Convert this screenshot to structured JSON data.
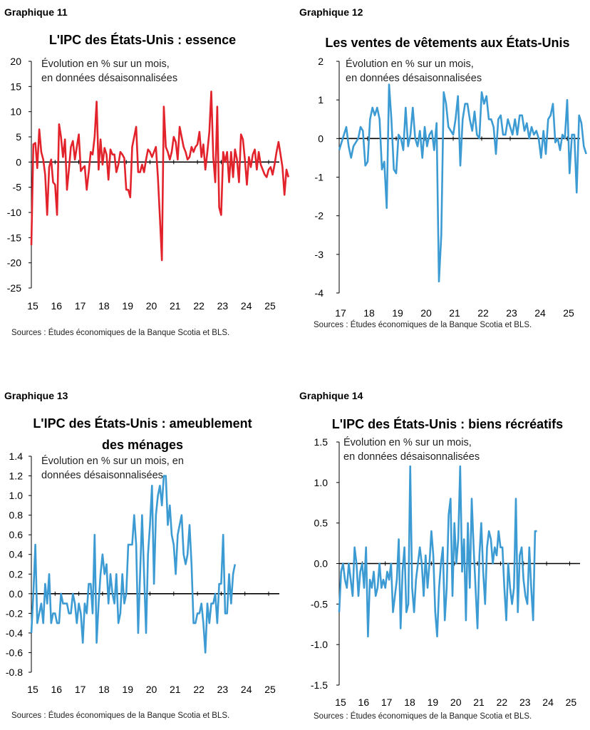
{
  "chart_data": [
    {
      "type": "line",
      "label": "Graphique 11",
      "title": "L'IPC des États-Unis : essence",
      "subtitle": [
        "Évolution en % sur un mois,",
        "en données désaisonnalisées"
      ],
      "source": "Sources : Études économiques de la Banque Scotia et BLS.",
      "xlabel": "",
      "ylabel": "",
      "color": "#e3232c",
      "ylim": [
        -25,
        20
      ],
      "yticks": [
        "20",
        "15",
        "10",
        "5",
        "0",
        "-5",
        "-10",
        "-15",
        "-20",
        "-25"
      ],
      "ytick_values": [
        20,
        15,
        10,
        5,
        0,
        -5,
        -10,
        -15,
        -20,
        -25
      ],
      "xlim": [
        2015.0,
        2025.45
      ],
      "xticks": [
        "15",
        "16",
        "17",
        "18",
        "19",
        "20",
        "21",
        "22",
        "23",
        "24",
        "25"
      ],
      "xtick_values": [
        2015,
        2016,
        2017,
        2018,
        2019,
        2020,
        2021,
        2022,
        2023,
        2024,
        2025
      ],
      "grid": false,
      "x_start": 2015.0,
      "x_step": 0.08333,
      "values": [
        -16.5,
        3.5,
        3.8,
        -1.2,
        6.5,
        2.0,
        0.5,
        -2.5,
        -10.5,
        -1.0,
        0.5,
        -4.0,
        -4.5,
        -10.5,
        7.5,
        5.0,
        1.0,
        4.5,
        -5.5,
        -1.5,
        3.0,
        4.2,
        0.5,
        3.0,
        5.5,
        -1.8,
        -1.2,
        -0.8,
        -5.5,
        -2.0,
        2.0,
        1.5,
        5.0,
        12.0,
        -1.5,
        4.5,
        -0.5,
        2.8,
        1.5,
        -3.5,
        2.5,
        1.5,
        1.5,
        -2.0,
        -0.5,
        2.0,
        1.5,
        0.8,
        -5.5,
        -5.5,
        -7.0,
        3.0,
        5.0,
        7.0,
        -2.0,
        -2.0,
        -0.5,
        -2.0,
        0.5,
        2.5,
        2.0,
        1.0,
        2.0,
        3.0,
        -3.0,
        -11.0,
        -19.5,
        11.0,
        3.0,
        2.0,
        0.5,
        2.0,
        5.0,
        4.0,
        0.5,
        7.0,
        5.0,
        3.0,
        2.0,
        0.5,
        1.0,
        3.0,
        2.0,
        3.0,
        3.5,
        6.0,
        1.0,
        3.5,
        -1.5,
        2.0,
        6.0,
        14.0,
        1.0,
        -4.0,
        11.0,
        -9.0,
        -10.5,
        2.0,
        0.0,
        2.0,
        -4.0,
        2.0,
        -3.0,
        2.5,
        0.5,
        -4.0,
        5.5,
        4.5,
        0.5,
        -4.5,
        1.0,
        -1.0,
        1.5,
        2.5,
        -1.5,
        2.0,
        -0.5,
        -1.5,
        -2.5,
        -3.0,
        -1.5,
        -1.0,
        -2.5,
        -0.5,
        2.0,
        4.0,
        1.5,
        -1.0,
        -6.5,
        -1.5,
        -3.0
      ]
    },
    {
      "type": "line",
      "label": "Graphique 12",
      "title": "Les ventes de vêtements aux États-Unis",
      "subtitle": [
        "Évolution en % sur un mois,",
        "en données désaisonnalisées"
      ],
      "source": "Sources : Études économiques de la Banque Scotia et  BLS.",
      "xlabel": "",
      "ylabel": "",
      "color": "#3d9bd3",
      "ylim": [
        -4,
        2
      ],
      "yticks": [
        "2",
        "1",
        "0",
        "-1",
        "-2",
        "-3",
        "-4"
      ],
      "ytick_values": [
        2,
        1,
        0,
        -1,
        -2,
        -3,
        -4
      ],
      "xlim": [
        2017.0,
        2025.45
      ],
      "xticks": [
        "17",
        "18",
        "19",
        "20",
        "21",
        "22",
        "23",
        "24",
        "25"
      ],
      "xtick_values": [
        2017,
        2018,
        2019,
        2020,
        2021,
        2022,
        2023,
        2024,
        2025
      ],
      "grid": false,
      "x_start": 2017.0,
      "x_step": 0.08333,
      "values": [
        -0.3,
        -0.1,
        0.1,
        0.3,
        -0.2,
        -0.5,
        -0.2,
        -0.1,
        0.0,
        0.3,
        0.2,
        -0.7,
        -0.6,
        0.5,
        0.8,
        0.6,
        0.8,
        0.5,
        -0.8,
        -0.6,
        -1.8,
        1.4,
        0.5,
        -0.8,
        -0.9,
        0.1,
        0.0,
        -0.3,
        0.8,
        -0.2,
        0.1,
        0.8,
        0.0,
        -0.2,
        0.2,
        -0.5,
        0.3,
        -0.2,
        0.1,
        0.2,
        -0.3,
        0.4,
        -3.7,
        -2.5,
        1.2,
        0.9,
        0.3,
        0.2,
        0.1,
        0.5,
        1.1,
        -0.7,
        0.5,
        0.9,
        0.9,
        0.5,
        0.2,
        0.7,
        0.1,
        0.0,
        1.2,
        0.9,
        1.1,
        0.5,
        0.5,
        0.3,
        -0.4,
        0.5,
        0.6,
        0.1,
        0.1,
        0.5,
        0.3,
        0.1,
        0.5,
        0.1,
        0.6,
        0.6,
        0.2,
        0.4,
        0.0,
        0.3,
        0.1,
        0.2,
        0.0,
        -0.5,
        0.2,
        -0.4,
        0.5,
        0.6,
        0.9,
        -0.1,
        0.0,
        -0.3,
        0.1,
        0.0,
        1.0,
        -0.9,
        0.1,
        0.1,
        -1.4,
        0.6,
        0.4,
        -0.2,
        -0.4
      ]
    },
    {
      "type": "line",
      "label": "Graphique 13",
      "title": "L'IPC des États-Unis : ameublement des ménages",
      "title_lines": [
        "L'IPC des États-Unis : ameublement",
        "des ménages"
      ],
      "subtitle": [
        "Évolution en % sur un mois, en",
        "données désaisonnalisées"
      ],
      "source": "Sources : Études économiques de la Banque Scotia et BLS.",
      "xlabel": "",
      "ylabel": "",
      "color": "#3d9bd3",
      "ylim": [
        -0.8,
        1.4
      ],
      "yticks": [
        "1.4",
        "1.2",
        "1.0",
        "0.8",
        "0.6",
        "0.4",
        "0.2",
        "0.0",
        "-0.2",
        "-0.4",
        "-0.6",
        "-0.8"
      ],
      "ytick_values": [
        1.4,
        1.2,
        1.0,
        0.8,
        0.6,
        0.4,
        0.2,
        0.0,
        -0.2,
        -0.4,
        -0.6,
        -0.8
      ],
      "xlim": [
        2015.0,
        2025.45
      ],
      "xticks": [
        "15",
        "16",
        "17",
        "18",
        "19",
        "20",
        "21",
        "22",
        "23",
        "24",
        "25"
      ],
      "xtick_values": [
        2015,
        2016,
        2017,
        2018,
        2019,
        2020,
        2021,
        2022,
        2023,
        2024,
        2025
      ],
      "grid": false,
      "x_start": 2015.0,
      "x_step": 0.08333,
      "values": [
        -0.4,
        0.0,
        0.5,
        -0.3,
        -0.2,
        -0.1,
        -0.3,
        0.1,
        -0.1,
        0.2,
        -0.3,
        -0.2,
        -0.2,
        -0.3,
        -0.3,
        0.0,
        -0.1,
        -0.1,
        -0.1,
        -0.2,
        -0.2,
        0.0,
        -0.1,
        -0.3,
        -0.1,
        -0.2,
        -0.5,
        -0.1,
        -0.2,
        0.1,
        0.1,
        -0.2,
        0.6,
        -0.5,
        -0.1,
        0.2,
        0.4,
        0.2,
        0.3,
        -0.1,
        0.2,
        0.0,
        -0.1,
        0.2,
        -0.3,
        -0.2,
        0.2,
        -0.1,
        0.0,
        0.5,
        0.5,
        0.5,
        0.8,
        0.5,
        -0.4,
        0.2,
        0.8,
        0.2,
        -0.4,
        0.4,
        0.7,
        1.1,
        0.1,
        0.8,
        1.0,
        1.1,
        0.9,
        1.2,
        1.2,
        0.7,
        0.9,
        0.6,
        0.5,
        0.2,
        0.6,
        0.7,
        0.8,
        0.4,
        0.3,
        0.4,
        0.7,
        0.3,
        -0.3,
        -0.3,
        -0.2,
        -0.2,
        -0.1,
        -0.3,
        -0.6,
        -0.1,
        -0.3,
        -0.1,
        -0.1,
        0.0,
        -0.3,
        0.1,
        0.1,
        0.6,
        -0.2,
        -0.2,
        0.2,
        -0.1,
        0.2,
        0.3
      ]
    },
    {
      "type": "line",
      "label": "Graphique 14",
      "title": "L'IPC des États-Unis : biens récréatifs",
      "subtitle": [
        "Évolution en % sur un mois,",
        "en données désaisonnalisées"
      ],
      "source": "Sources : Études économiques de la Banque Scotia et BLS.",
      "xlabel": "",
      "ylabel": "",
      "color": "#3d9bd3",
      "ylim": [
        -1.5,
        1.5
      ],
      "yticks": [
        "1.5",
        "1.0",
        "0.5",
        "0.0",
        "-0.5",
        "-1.0",
        "-1.5"
      ],
      "ytick_values": [
        1.5,
        1.0,
        0.5,
        0.0,
        -0.5,
        -1.0,
        -1.5
      ],
      "xlim": [
        2015.0,
        2025.45
      ],
      "xticks": [
        "15",
        "16",
        "17",
        "18",
        "19",
        "20",
        "21",
        "22",
        "23",
        "24",
        "25"
      ],
      "xtick_values": [
        2015,
        2016,
        2017,
        2018,
        2019,
        2020,
        2021,
        2022,
        2023,
        2024,
        2025
      ],
      "grid": false,
      "x_start": 2015.0,
      "x_step": 0.08333,
      "values": [
        -0.6,
        -0.1,
        0.0,
        -0.2,
        -0.3,
        0.0,
        -0.2,
        -0.4,
        0.2,
        0.0,
        -0.4,
        -0.1,
        0.0,
        -0.3,
        0.2,
        -0.9,
        -0.2,
        -0.3,
        -0.1,
        -0.4,
        -0.3,
        0.0,
        -0.3,
        -0.2,
        -0.3,
        -0.1,
        -0.2,
        0.0,
        -0.6,
        -0.4,
        -0.2,
        0.3,
        -0.8,
        -0.1,
        0.2,
        -0.6,
        -0.5,
        1.2,
        -0.3,
        -0.6,
        -0.2,
        0.0,
        0.2,
        0.0,
        -0.4,
        0.1,
        -0.3,
        0.0,
        0.4,
        0.1,
        -0.6,
        -0.9,
        -0.3,
        0.0,
        0.2,
        -0.7,
        -0.3,
        0.6,
        0.8,
        -0.4,
        0.5,
        0.0,
        0.3,
        1.2,
        -0.1,
        0.3,
        -0.7,
        0.5,
        -0.3,
        0.8,
        0.2,
        -0.3,
        -0.8,
        0.1,
        0.5,
        -0.1,
        -0.5,
        0.2,
        0.4,
        0.3,
        0.0,
        0.2,
        0.1,
        0.4,
        0.2,
        0.2,
        -0.3,
        -0.7,
        0.0,
        -0.3,
        -0.5,
        -0.3,
        0.8,
        -0.6,
        0.1,
        0.2,
        -0.2,
        -0.4,
        -0.5,
        0.2,
        -0.3,
        -0.7,
        0.4,
        0.4
      ]
    }
  ]
}
